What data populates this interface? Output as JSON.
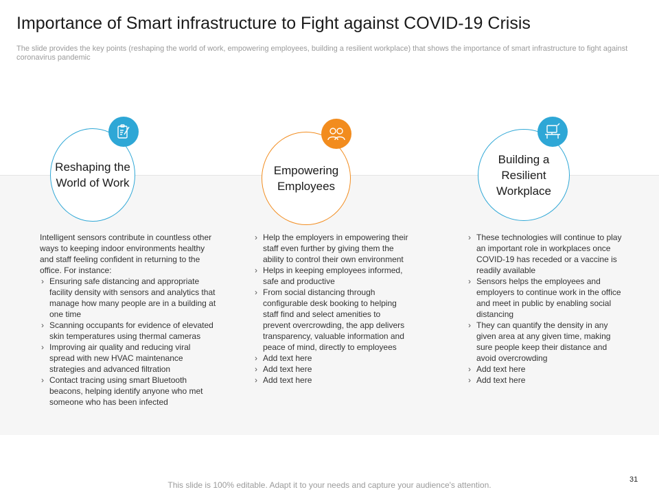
{
  "title": "Importance of Smart infrastructure to Fight against COVID-19 Crisis",
  "subtitle": "The slide provides the key points (reshaping the world of work, empowering employees, building a resilient workplace) that shows the importance of smart infrastructure to fight against coronavirus pandemic",
  "colors": {
    "blue": "#2ea7d6",
    "orange": "#f28c1e",
    "band": "#f6f6f6"
  },
  "columns": [
    {
      "heading": [
        "Reshaping the",
        "World of Work"
      ],
      "icon": "clipboard-pen-icon",
      "intro": "Intelligent sensors contribute in countless other ways to keeping indoor environments healthy and staff feeling confident in returning to the office. For instance:",
      "bullets": [
        "Ensuring safe distancing and appropriate facility density with sensors and analytics that manage how many people are in a building at one time",
        "Scanning occupants for evidence of elevated skin temperatures using thermal cameras",
        "Improving air quality and reducing viral spread with new HVAC maintenance strategies and advanced filtration",
        "Contact tracing using smart Bluetooth beacons, helping identify anyone who met someone who has been infected"
      ]
    },
    {
      "heading": [
        "Empowering",
        "Employees"
      ],
      "icon": "people-icon",
      "bullets": [
        "Help the employers in empowering their staff even further by giving them the ability to control their own environment",
        "Helps in keeping employees informed, safe and productive",
        "From social distancing through configurable desk booking to helping staff find and select amenities to prevent overcrowding, the app delivers transparency, valuable information and peace of mind, directly to employees",
        "Add text here",
        "Add text here",
        "Add text here"
      ]
    },
    {
      "heading": [
        "Building a",
        "Resilient",
        "Workplace"
      ],
      "icon": "monitor-desk-icon",
      "bullets": [
        "These technologies will continue to play an important role in workplaces once COVID-19 has receded or a vaccine is readily available",
        "Sensors helps the employees and employers to continue work in the office and meet in public by enabling social distancing",
        "They can quantify the density in any given area at any given time, making sure people keep their distance and avoid overcrowding",
        "Add text here",
        "Add text here"
      ]
    }
  ],
  "footer": "This slide is 100% editable. Adapt it to your needs and capture your audience's attention.",
  "page_number": "31"
}
